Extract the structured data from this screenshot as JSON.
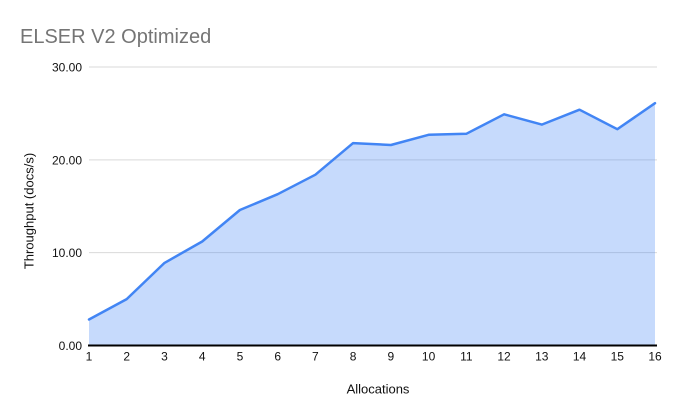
{
  "chart_data": {
    "type": "area",
    "title": "ELSER V2 Optimized",
    "xlabel": "Allocations",
    "ylabel": "Throughput (docs/s)",
    "x": [
      1,
      2,
      3,
      4,
      5,
      6,
      7,
      8,
      9,
      10,
      11,
      12,
      13,
      14,
      15,
      16
    ],
    "series": [
      {
        "name": "Throughput",
        "values": [
          2.8,
          5.0,
          8.9,
          11.2,
          14.6,
          16.3,
          18.4,
          21.8,
          21.6,
          22.7,
          22.8,
          24.9,
          23.8,
          25.4,
          23.3,
          26.1
        ]
      }
    ],
    "ylim": [
      0,
      30
    ],
    "yticks": [
      0,
      10,
      20,
      30
    ],
    "ytick_decimals": 2,
    "grid": true,
    "legend": "none",
    "colors": {
      "line": "#4285f4",
      "fill": "rgba(66,133,244,0.3)",
      "gridline": "#d9d9d9",
      "axis": "#000000",
      "tick_label": "#111111",
      "axis_title": "#111111",
      "title": "#757575",
      "background": "#ffffff"
    }
  }
}
